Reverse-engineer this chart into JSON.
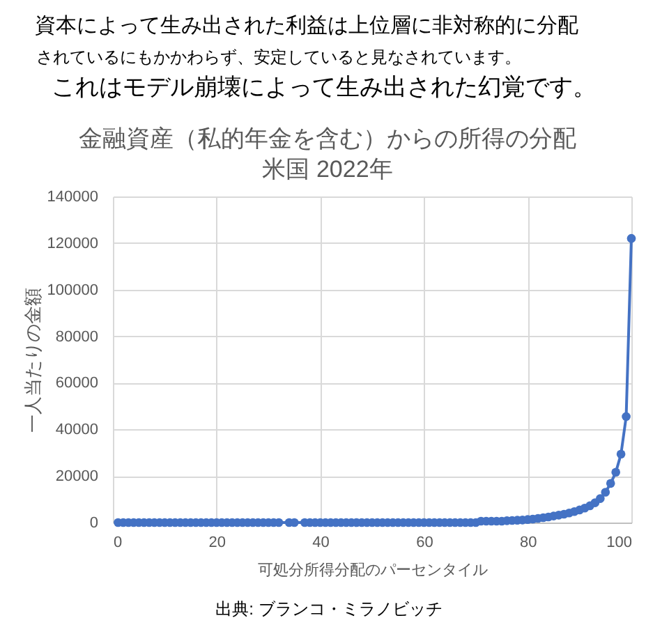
{
  "chart_data": {
    "type": "line",
    "title": "金融資産（私的年金を含む）からの所得の分配",
    "subtitle": "米国 2022年",
    "xlabel": "可処分所得分配のパーセンタイル",
    "ylabel": "一人当たりの金額",
    "annotations": [
      "資本によって生み出された利益は上位層に非対称的に分配",
      "されているにもかかわらず、安定していると見なされています。",
      "これはモデル崩壊によって生み出された幻覚です。",
      "出典: ブランコ・ミラノビッチ"
    ],
    "x": [
      1,
      2,
      3,
      4,
      5,
      6,
      7,
      8,
      9,
      10,
      11,
      12,
      13,
      14,
      15,
      16,
      17,
      18,
      19,
      20,
      21,
      22,
      23,
      24,
      25,
      26,
      27,
      28,
      29,
      30,
      31,
      32,
      34,
      35,
      37,
      38,
      39,
      40,
      41,
      42,
      43,
      44,
      45,
      46,
      47,
      48,
      49,
      50,
      51,
      52,
      53,
      54,
      55,
      56,
      57,
      58,
      59,
      60,
      61,
      62,
      63,
      64,
      65,
      66,
      67,
      68,
      69,
      70,
      71,
      72,
      73,
      74,
      75,
      76,
      77,
      78,
      79,
      80,
      81,
      82,
      83,
      84,
      85,
      86,
      87,
      88,
      89,
      90,
      91,
      92,
      93,
      94,
      95,
      96,
      97,
      98,
      99,
      100
    ],
    "series": [
      {
        "color": "#4472c4",
        "values": [
          0,
          0,
          0,
          0,
          0,
          0,
          0,
          0,
          0,
          0,
          0,
          0,
          0,
          0,
          0,
          0,
          0,
          0,
          0,
          0,
          0,
          0,
          0,
          0,
          0,
          0,
          0,
          0,
          0,
          0,
          0,
          0,
          0,
          0,
          0,
          0,
          0,
          0,
          0,
          0,
          0,
          0,
          0,
          0,
          0,
          0,
          0,
          0,
          0,
          0,
          0,
          0,
          0,
          0,
          0,
          0,
          0,
          0,
          0,
          0,
          0,
          0,
          0,
          0,
          0,
          0,
          0,
          0,
          600,
          600,
          600,
          600,
          600,
          800,
          900,
          1000,
          1100,
          1300,
          1500,
          1800,
          2100,
          2400,
          2800,
          3200,
          3600,
          4100,
          4700,
          5400,
          6200,
          7200,
          8500,
          10300,
          13000,
          16800,
          21600,
          29400,
          45500,
          122000
        ]
      }
    ],
    "xlim": [
      0,
      100
    ],
    "ylim": [
      0,
      140000
    ],
    "xticks": [
      0,
      20,
      40,
      60,
      80,
      100
    ],
    "yticks": [
      0,
      20000,
      40000,
      60000,
      80000,
      100000,
      120000,
      140000
    ],
    "grid": true,
    "marker": "circle",
    "line_style": "solid"
  }
}
